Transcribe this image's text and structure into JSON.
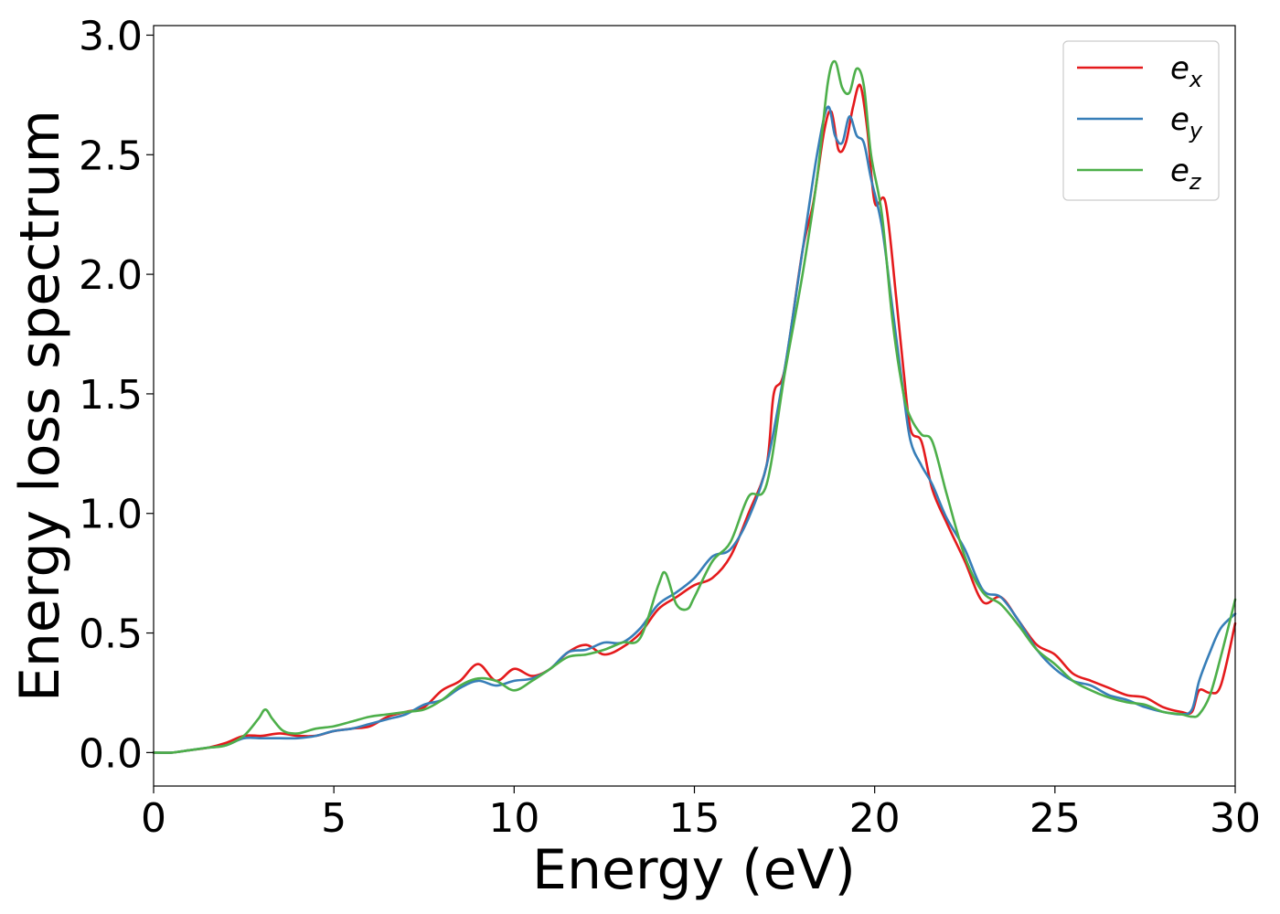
{
  "chart_data": {
    "type": "line",
    "title": "",
    "xlabel": "Energy (eV)",
    "ylabel": "Energy loss spectrum",
    "xlim": [
      0,
      30
    ],
    "ylim": [
      -0.14,
      3.04
    ],
    "xticks": [
      0,
      5,
      10,
      15,
      20,
      25,
      30
    ],
    "xtick_labels": [
      "0",
      "5",
      "10",
      "15",
      "20",
      "25",
      "30"
    ],
    "yticks": [
      0.0,
      0.5,
      1.0,
      1.5,
      2.0,
      2.5,
      3.0
    ],
    "ytick_labels": [
      "0.0",
      "0.5",
      "1.0",
      "1.5",
      "2.0",
      "2.5",
      "3.0"
    ],
    "grid": false,
    "legend_position": "top-right",
    "series": [
      {
        "name": "e_x",
        "label_base": "e",
        "label_sub": "x",
        "color": "#e41a1c",
        "x": [
          0,
          0.5,
          1,
          1.5,
          2,
          2.5,
          3,
          3.5,
          4,
          4.5,
          5,
          5.5,
          6,
          6.5,
          7,
          7.5,
          8,
          8.5,
          9,
          9.5,
          10,
          10.5,
          11,
          11.5,
          12,
          12.5,
          13,
          13.5,
          14,
          14.5,
          15,
          15.5,
          16,
          16.5,
          17,
          17.2,
          17.5,
          18,
          18.3,
          18.6,
          18.8,
          19,
          19.2,
          19.4,
          19.6,
          19.8,
          20,
          20.3,
          20.6,
          20.8,
          21,
          21.3,
          21.6,
          22,
          22.5,
          23,
          23.5,
          24,
          24.5,
          25,
          25.5,
          26,
          26.5,
          27,
          27.5,
          28,
          28.5,
          28.8,
          29,
          29.3,
          29.6,
          30
        ],
        "y": [
          0,
          0,
          0.01,
          0.02,
          0.04,
          0.07,
          0.07,
          0.08,
          0.07,
          0.07,
          0.09,
          0.1,
          0.11,
          0.15,
          0.17,
          0.19,
          0.26,
          0.3,
          0.37,
          0.3,
          0.35,
          0.32,
          0.35,
          0.42,
          0.45,
          0.41,
          0.44,
          0.5,
          0.6,
          0.65,
          0.7,
          0.73,
          0.82,
          1.0,
          1.2,
          1.5,
          1.6,
          2.1,
          2.3,
          2.6,
          2.68,
          2.52,
          2.55,
          2.7,
          2.79,
          2.6,
          2.3,
          2.3,
          1.9,
          1.6,
          1.35,
          1.3,
          1.1,
          0.96,
          0.8,
          0.63,
          0.65,
          0.55,
          0.45,
          0.41,
          0.33,
          0.3,
          0.27,
          0.24,
          0.23,
          0.19,
          0.17,
          0.17,
          0.26,
          0.25,
          0.28,
          0.54
        ]
      },
      {
        "name": "e_y",
        "label_base": "e",
        "label_sub": "y",
        "color": "#377eb8",
        "x": [
          0,
          0.5,
          1,
          1.5,
          2,
          2.5,
          3,
          3.5,
          4,
          4.5,
          5,
          5.5,
          6,
          6.5,
          7,
          7.5,
          8,
          8.5,
          9,
          9.5,
          10,
          10.5,
          11,
          11.5,
          12,
          12.5,
          13,
          13.5,
          14,
          14.5,
          15,
          15.5,
          16,
          16.5,
          17,
          17.5,
          18,
          18.4,
          18.7,
          18.9,
          19.1,
          19.3,
          19.5,
          19.7,
          19.9,
          20.2,
          20.5,
          20.8,
          21,
          21.3,
          21.6,
          22,
          22.5,
          23,
          23.5,
          24,
          24.5,
          25,
          25.5,
          26,
          26.5,
          27,
          27.5,
          28,
          28.5,
          28.8,
          29,
          29.3,
          29.6,
          30
        ],
        "y": [
          0,
          0,
          0.01,
          0.02,
          0.03,
          0.06,
          0.06,
          0.06,
          0.06,
          0.07,
          0.09,
          0.1,
          0.12,
          0.14,
          0.16,
          0.2,
          0.22,
          0.27,
          0.3,
          0.28,
          0.3,
          0.31,
          0.35,
          0.42,
          0.43,
          0.46,
          0.46,
          0.52,
          0.62,
          0.67,
          0.73,
          0.82,
          0.85,
          0.98,
          1.2,
          1.6,
          2.1,
          2.5,
          2.7,
          2.58,
          2.55,
          2.66,
          2.58,
          2.55,
          2.4,
          2.2,
          1.85,
          1.5,
          1.3,
          1.2,
          1.12,
          0.98,
          0.85,
          0.68,
          0.65,
          0.55,
          0.43,
          0.35,
          0.3,
          0.28,
          0.24,
          0.22,
          0.19,
          0.17,
          0.16,
          0.18,
          0.3,
          0.42,
          0.52,
          0.58
        ]
      },
      {
        "name": "e_z",
        "label_base": "e",
        "label_sub": "z",
        "color": "#4daf4a",
        "x": [
          0,
          0.5,
          1,
          1.5,
          2,
          2.5,
          2.9,
          3.1,
          3.3,
          3.6,
          4,
          4.5,
          5,
          5.5,
          6,
          6.5,
          7,
          7.5,
          8,
          8.5,
          9,
          9.5,
          10,
          10.5,
          11,
          11.5,
          12,
          12.5,
          13,
          13.5,
          14,
          14.2,
          14.5,
          14.8,
          15,
          15.5,
          16,
          16.5,
          17,
          17.5,
          18,
          18.4,
          18.7,
          18.9,
          19.1,
          19.3,
          19.5,
          19.7,
          19.9,
          20.2,
          20.5,
          20.8,
          21,
          21.3,
          21.6,
          22,
          22.5,
          23,
          23.5,
          24,
          24.5,
          25,
          25.5,
          26,
          26.5,
          27,
          27.5,
          28,
          28.5,
          28.8,
          29,
          29.3,
          29.6,
          30
        ],
        "y": [
          0,
          0,
          0.01,
          0.02,
          0.03,
          0.07,
          0.14,
          0.18,
          0.14,
          0.09,
          0.08,
          0.1,
          0.11,
          0.13,
          0.15,
          0.16,
          0.17,
          0.18,
          0.22,
          0.28,
          0.31,
          0.3,
          0.26,
          0.3,
          0.35,
          0.4,
          0.41,
          0.43,
          0.46,
          0.48,
          0.7,
          0.75,
          0.62,
          0.6,
          0.65,
          0.8,
          0.88,
          1.07,
          1.12,
          1.58,
          2.0,
          2.4,
          2.8,
          2.89,
          2.78,
          2.76,
          2.86,
          2.79,
          2.5,
          2.25,
          1.8,
          1.5,
          1.4,
          1.33,
          1.3,
          1.08,
          0.82,
          0.67,
          0.62,
          0.53,
          0.43,
          0.37,
          0.3,
          0.26,
          0.23,
          0.21,
          0.2,
          0.17,
          0.16,
          0.15,
          0.16,
          0.24,
          0.4,
          0.64
        ]
      }
    ]
  }
}
